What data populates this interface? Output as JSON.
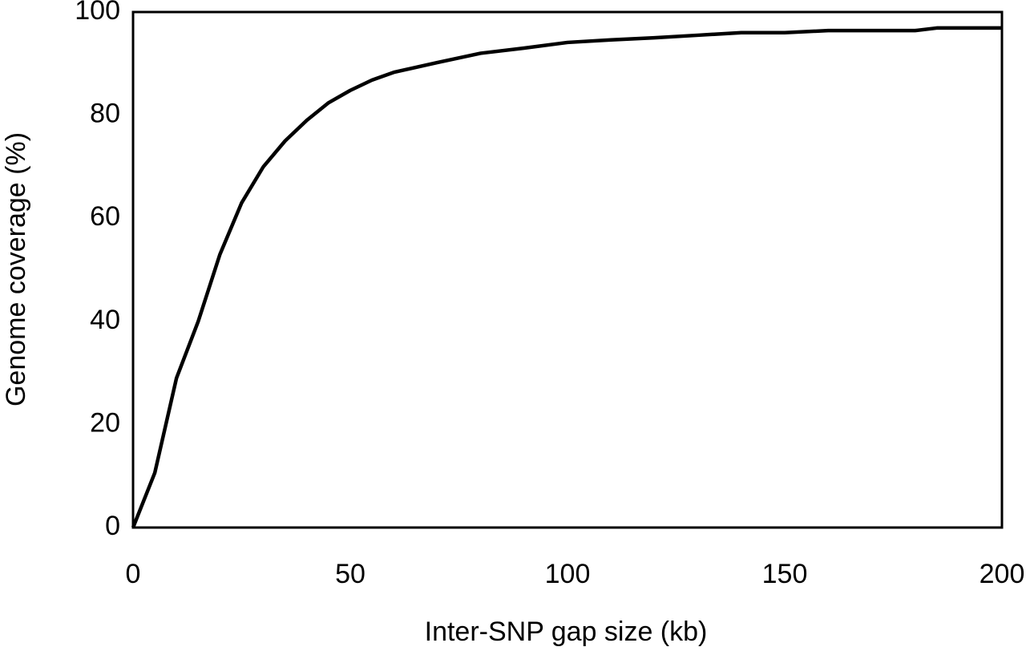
{
  "chart_data": {
    "type": "line",
    "x_label": "Inter-SNP gap size (kb)",
    "y_label": "Genome coverage (%)",
    "x": [
      0,
      5,
      10,
      15,
      20,
      25,
      30,
      35,
      40,
      45,
      50,
      55,
      60,
      70,
      80,
      90,
      100,
      110,
      120,
      130,
      140,
      150,
      160,
      170,
      180,
      185,
      190,
      200
    ],
    "series": [
      {
        "color": "#000000",
        "values": [
          0,
          10.6,
          29,
          40,
          53,
          63,
          70,
          75,
          79,
          82.4,
          84.8,
          86.8,
          88.3,
          90.2,
          92,
          93,
          94.1,
          94.6,
          95,
          95.5,
          96,
          96,
          96.4,
          96.4,
          96.4,
          96.9,
          96.9,
          96.9
        ]
      }
    ],
    "xlim": [
      0,
      200
    ],
    "xticks": [
      0,
      50,
      100,
      150,
      200
    ],
    "ylim": [
      0,
      100
    ],
    "yticks": [
      0,
      20,
      40,
      60,
      80,
      100
    ],
    "grid": false
  }
}
